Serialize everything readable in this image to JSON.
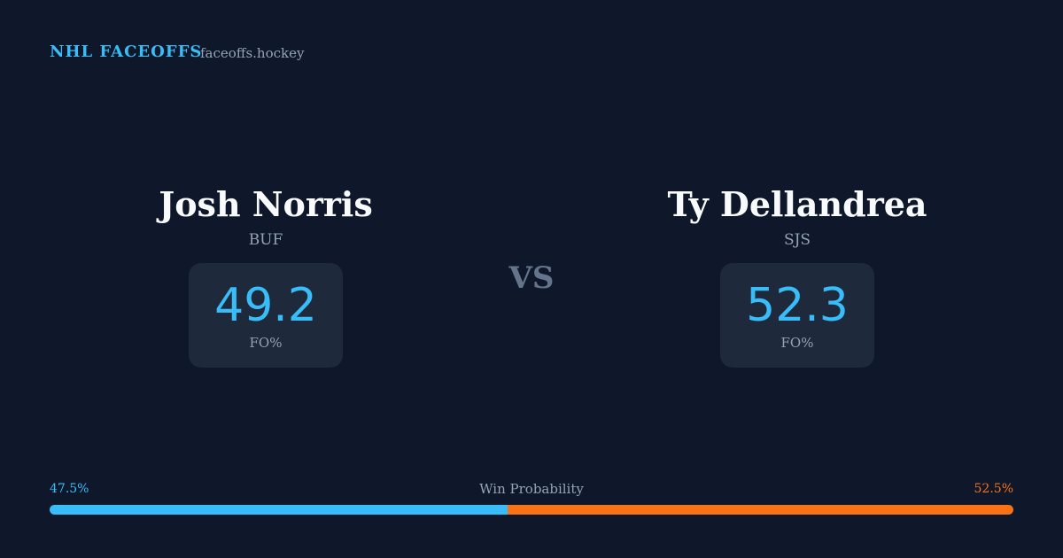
{
  "header": {
    "brand": "NHL FACEOFFS",
    "site": "faceoffs.hockey"
  },
  "players": [
    {
      "name": "Josh Norris",
      "team": "BUF",
      "stat_value": 49.2,
      "stat_label": "FO%"
    },
    {
      "name": "Ty Dellandrea",
      "team": "SJS",
      "stat_value": 52.3,
      "stat_label": "FO%"
    }
  ],
  "versus": "VS",
  "win_probability": {
    "title": "Win Probability",
    "left": {
      "value": 47.5,
      "label": "47.5%",
      "color": "#38bdf8"
    },
    "right": {
      "value": 52.5,
      "label": "52.5%",
      "color": "#f97316"
    }
  }
}
